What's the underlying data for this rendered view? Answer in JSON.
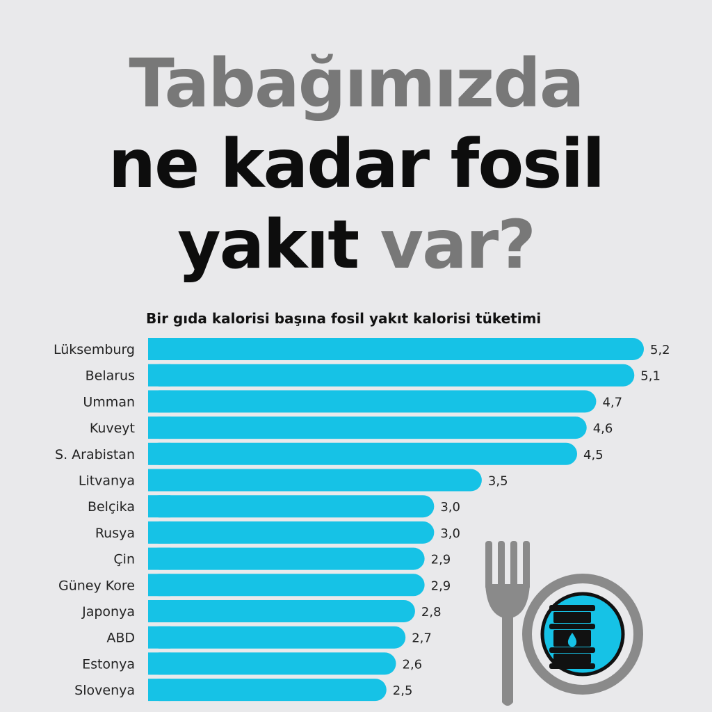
{
  "title": {
    "line1": "Tabağımızda",
    "line2": "ne kadar fosil",
    "line3_dark": "yakıt ",
    "line3_grey": "var?"
  },
  "colors": {
    "background": "#e9e9eb",
    "bar": "#16c2e6",
    "title_grey": "#787878",
    "title_dark": "#0d0d0d",
    "plate": "#8a8a8a"
  },
  "chart_data": {
    "type": "bar",
    "orientation": "horizontal",
    "title": "Bir gıda kalorisi başına fosil yakıt kalorisi tüketimi",
    "categories": [
      "Lüksemburg",
      "Belarus",
      "Umman",
      "Kuveyt",
      "S. Arabistan",
      "Litvanya",
      "Belçika",
      "Rusya",
      "Çin",
      "Güney Kore",
      "Japonya",
      "ABD",
      "Estonya",
      "Slovenya"
    ],
    "values": [
      5.2,
      5.1,
      4.7,
      4.6,
      4.5,
      3.5,
      3.0,
      3.0,
      2.9,
      2.9,
      2.8,
      2.7,
      2.6,
      2.5
    ],
    "value_labels": [
      "5,2",
      "5,1",
      "4,7",
      "4,6",
      "4,5",
      "3,5",
      "3,0",
      "3,0",
      "2,9",
      "2,9",
      "2,8",
      "2,7",
      "2,6",
      "2,5"
    ],
    "xlim": [
      0,
      5.2
    ],
    "grid": false,
    "legend": "none"
  },
  "illustration": {
    "icons": [
      "fork-icon",
      "plate-icon",
      "oil-barrel-icon"
    ]
  }
}
